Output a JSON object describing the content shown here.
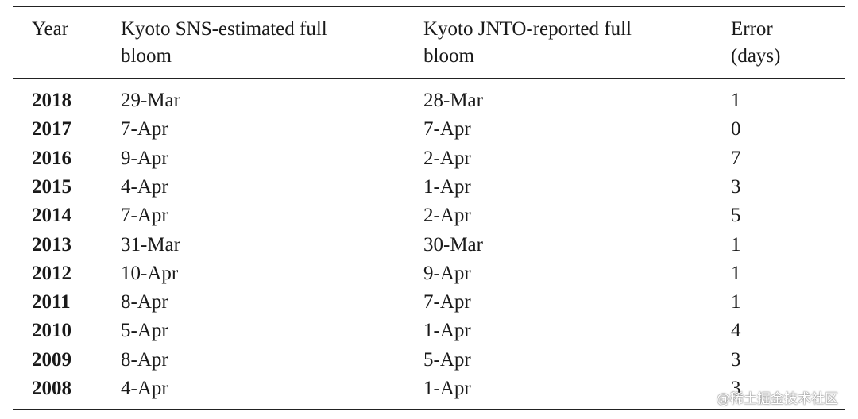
{
  "table": {
    "header": [
      "Year",
      "Kyoto SNS-estimated full bloom",
      "Kyoto JNTO-reported full bloom",
      "Error (days)"
    ],
    "rows": [
      [
        2018,
        "29-Mar",
        "28-Mar",
        1
      ],
      [
        2017,
        "7-Apr",
        "7-Apr",
        0
      ],
      [
        2016,
        "9-Apr",
        "2-Apr",
        7
      ],
      [
        2015,
        "4-Apr",
        "1-Apr",
        3
      ],
      [
        2014,
        "7-Apr",
        "2-Apr",
        5
      ],
      [
        2013,
        "31-Mar",
        "30-Mar",
        1
      ],
      [
        2012,
        "10-Apr",
        "9-Apr",
        1
      ],
      [
        2011,
        "8-Apr",
        "7-Apr",
        1
      ],
      [
        2010,
        "5-Apr",
        "1-Apr",
        4
      ],
      [
        2009,
        "8-Apr",
        "5-Apr",
        3
      ],
      [
        2008,
        "4-Apr",
        "1-Apr",
        3
      ]
    ]
  },
  "watermark": "@稀土掘金技术社区"
}
